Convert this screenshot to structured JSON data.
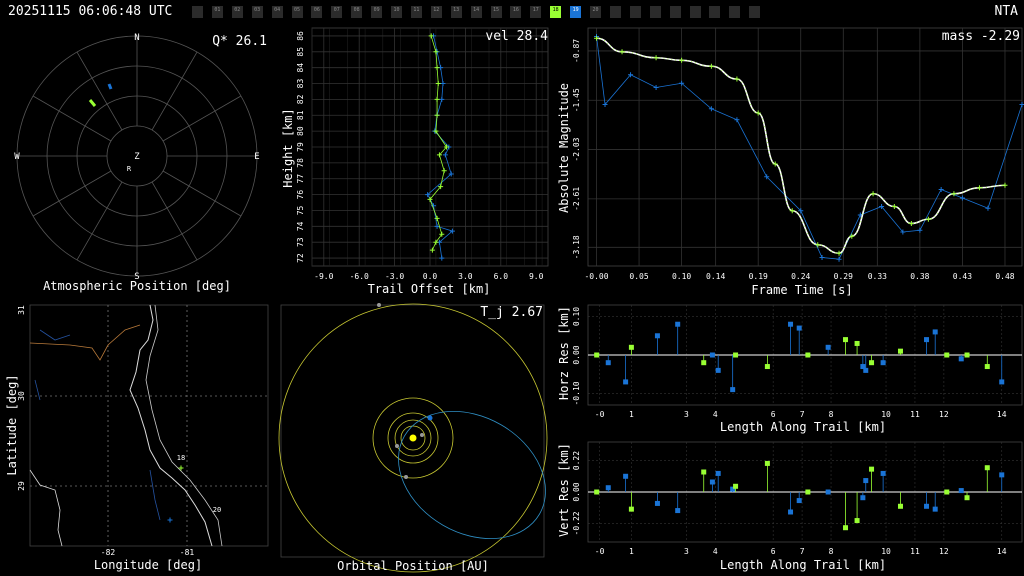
{
  "header": {
    "timestamp": "20251115 06:06:48 UTC",
    "station": "NTA"
  },
  "cameras": {
    "labels": [
      "",
      "01",
      "02",
      "03",
      "04",
      "05",
      "06",
      "07",
      "08",
      "09",
      "10",
      "11",
      "12",
      "13",
      "14",
      "15",
      "16",
      "17",
      "18",
      "19",
      "20",
      "",
      "",
      "",
      "",
      "",
      "",
      "",
      ""
    ],
    "active_green": "18",
    "active_blue": "19"
  },
  "colors": {
    "blue": "#1a74d6",
    "green": "#99ff33",
    "grid": "#333333",
    "axis": "#ffffff",
    "sun": "#ffff00",
    "orbit_yellow": "#c8c832",
    "orbit_blue": "#2f8fc4"
  },
  "panels": {
    "polar": {
      "title": "Atmospheric Position [deg]",
      "metric": "Q* 26.1",
      "n": "N",
      "s": "S",
      "e": "E",
      "w": "W",
      "z": "Z",
      "r": "R"
    },
    "trail": {
      "title": "Trail Offset [km]",
      "ylabel": "Height [km]",
      "metric": "vel 28.4",
      "xticks": [
        "-9.0",
        "-6.0",
        "-3.0",
        "0.0",
        "3.0",
        "6.0",
        "9.0"
      ],
      "yticks": [
        "72",
        "73",
        "74",
        "75",
        "76",
        "77",
        "78",
        "79",
        "80",
        "81",
        "82",
        "83",
        "84",
        "85",
        "86"
      ]
    },
    "mag": {
      "xlabel": "Frame Time [s]",
      "ylabel": "Absolute Magnitude",
      "metric": "mass -2.29",
      "xticks": [
        "-0.00",
        "0.05",
        "0.10",
        "0.14",
        "0.19",
        "0.24",
        "0.29",
        "0.33",
        "0.38",
        "0.43",
        "0.48"
      ],
      "yticks": [
        "-0.87",
        "-1.45",
        "-2.03",
        "-2.61",
        "-3.18"
      ]
    },
    "map": {
      "xlabel": "Longitude [deg]",
      "ylabel": "Latitude [deg]",
      "xticks": [
        "-82",
        "-81"
      ],
      "yticks": [
        "29",
        "30",
        "31"
      ],
      "cam_labels": [
        "18",
        "20"
      ]
    },
    "orbit": {
      "xlabel": "Orbital Position [AU]",
      "metric": "T_j 2.67"
    },
    "horz": {
      "xlabel": "Length Along Trail [km]",
      "ylabel": "Horz Res [km]",
      "xticks": [
        "-0",
        "1",
        "3",
        "4",
        "6",
        "7",
        "8",
        "10",
        "11",
        "12",
        "14"
      ],
      "yticks": [
        "0.10",
        "0.00",
        "-0.10"
      ]
    },
    "vert": {
      "xlabel": "Length Along Trail [km]",
      "ylabel": "Vert Res [km]",
      "xticks": [
        "-0",
        "1",
        "3",
        "4",
        "6",
        "7",
        "8",
        "10",
        "11",
        "12",
        "14"
      ],
      "yticks": [
        "0.22",
        "0.00",
        "-0.22"
      ]
    }
  },
  "chart_data": [
    {
      "type": "scatter",
      "name": "polar",
      "title": "Atmospheric Position [deg]",
      "series": [
        {
          "name": "blue",
          "points": [
            [
              -28,
              72
            ],
            [
              -28,
              71
            ]
          ]
        },
        {
          "name": "green",
          "points": [
            [
              -47,
              56
            ],
            [
              -44,
              54
            ]
          ]
        }
      ]
    },
    {
      "type": "line",
      "name": "trail",
      "xlim": [
        -10,
        10
      ],
      "ylim": [
        71.5,
        86.5
      ],
      "series": [
        {
          "name": "blue",
          "x": [
            0.3,
            0.6,
            0.9,
            1.1,
            1.0,
            0.6,
            0.4,
            1.6,
            1.3,
            1.8,
            -0.2,
            0.3,
            0.6,
            1.9,
            0.8,
            1.0
          ],
          "y": [
            86,
            85,
            84,
            83,
            82,
            81,
            80,
            79,
            78.5,
            77.3,
            76,
            75.3,
            74,
            73.7,
            73,
            72
          ]
        },
        {
          "name": "green",
          "x": [
            0.1,
            0.5,
            0.6,
            0.7,
            0.6,
            0.6,
            0.5,
            1.4,
            0.8,
            1.2,
            0.9,
            0.0,
            0.6,
            1.0,
            0.5,
            0.2
          ],
          "y": [
            86,
            85,
            84,
            83,
            82,
            81,
            80,
            79,
            78.5,
            77.5,
            76.5,
            75.7,
            74.5,
            73.5,
            73,
            72.5
          ]
        }
      ]
    },
    {
      "type": "line",
      "name": "mag",
      "xlim": [
        -0.01,
        0.5
      ],
      "ylim": [
        -0.6,
        -3.4
      ],
      "series": [
        {
          "name": "blue",
          "x": [
            -0.0,
            0.01,
            0.04,
            0.07,
            0.1,
            0.135,
            0.165,
            0.2,
            0.24,
            0.265,
            0.285,
            0.31,
            0.335,
            0.36,
            0.38,
            0.405,
            0.43,
            0.46,
            0.5
          ],
          "y": [
            -0.7,
            -1.5,
            -1.15,
            -1.3,
            -1.25,
            -1.55,
            -1.68,
            -2.35,
            -2.75,
            -3.3,
            -3.32,
            -2.8,
            -2.7,
            -3.0,
            -2.98,
            -2.5,
            -2.6,
            -2.72,
            -1.5
          ]
        },
        {
          "name": "green",
          "x": [
            -0.0,
            0.03,
            0.07,
            0.1,
            0.135,
            0.165,
            0.19,
            0.21,
            0.23,
            0.26,
            0.285,
            0.3,
            0.325,
            0.35,
            0.37,
            0.39,
            0.42,
            0.45,
            0.48
          ],
          "y": [
            -0.72,
            -0.88,
            -0.95,
            -0.98,
            -1.05,
            -1.2,
            -1.6,
            -2.2,
            -2.75,
            -3.15,
            -3.25,
            -3.05,
            -2.55,
            -2.7,
            -2.9,
            -2.85,
            -2.55,
            -2.48,
            -2.45
          ]
        }
      ]
    },
    {
      "type": "scatter",
      "name": "horz",
      "xlim": [
        -0.5,
        14.5
      ],
      "ylim": [
        -0.13,
        0.13
      ],
      "series": [
        {
          "name": "blue",
          "x": [
            0.2,
            0.8,
            1.9,
            2.6,
            3.8,
            4.0,
            4.5,
            6.5,
            6.8,
            7.8,
            9.0,
            9.1,
            9.7,
            11.2,
            11.5,
            12.4,
            13.8
          ],
          "y": [
            -0.02,
            -0.07,
            0.05,
            0.08,
            0.0,
            -0.04,
            -0.09,
            0.08,
            0.07,
            0.02,
            -0.03,
            -0.04,
            -0.02,
            0.04,
            0.06,
            -0.01,
            -0.07
          ]
        },
        {
          "name": "green",
          "x": [
            -0.2,
            1.0,
            3.5,
            4.6,
            5.7,
            7.1,
            8.4,
            8.8,
            9.3,
            10.3,
            11.9,
            12.6,
            13.3
          ],
          "y": [
            0.0,
            0.02,
            -0.02,
            0.0,
            -0.03,
            0.0,
            0.04,
            0.03,
            -0.02,
            0.01,
            0.0,
            0.0,
            -0.03
          ]
        }
      ]
    },
    {
      "type": "scatter",
      "name": "vert",
      "xlim": [
        -0.5,
        14.5
      ],
      "ylim": [
        -0.35,
        0.35
      ],
      "series": [
        {
          "name": "blue",
          "x": [
            0.2,
            0.8,
            1.9,
            2.6,
            3.8,
            4.0,
            4.5,
            6.5,
            6.8,
            7.8,
            9.0,
            9.1,
            9.7,
            11.2,
            11.5,
            12.4,
            13.8
          ],
          "y": [
            0.03,
            0.11,
            -0.08,
            -0.13,
            0.07,
            0.13,
            0.02,
            -0.14,
            -0.06,
            0.0,
            -0.04,
            0.08,
            0.13,
            -0.1,
            -0.12,
            0.01,
            0.12
          ]
        },
        {
          "name": "green",
          "x": [
            -0.2,
            1.0,
            3.5,
            4.6,
            5.7,
            7.1,
            8.4,
            8.8,
            9.3,
            10.3,
            11.9,
            12.6,
            13.3
          ],
          "y": [
            0.0,
            -0.12,
            0.14,
            0.04,
            0.2,
            0.0,
            -0.25,
            -0.2,
            0.16,
            -0.1,
            0.0,
            -0.04,
            0.17
          ]
        }
      ]
    }
  ]
}
